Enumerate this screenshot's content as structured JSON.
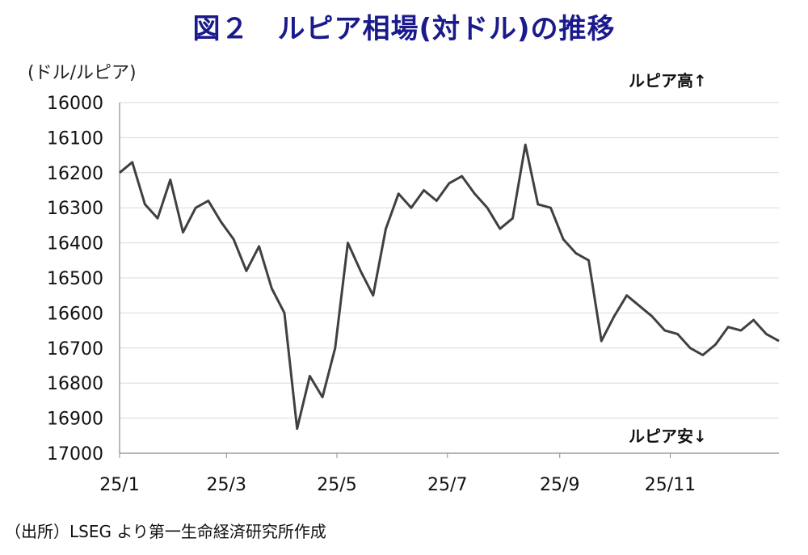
{
  "title": "図２　ルピア相場(対ドル)の推移",
  "unit_label": "(ドル/ルピア)",
  "annotations": {
    "rupiah_strong": "ルピア高↑",
    "rupiah_weak": "ルピア安↓"
  },
  "source": "（出所）LSEG より第一生命経済研究所作成",
  "colors": {
    "title": "#1a1a8c",
    "line": "#404040",
    "grid": "#d9d9d9",
    "axis": "#8c8c8c"
  },
  "chart_data": {
    "type": "line",
    "title": "図２　ルピア相場(対ドル)の推移",
    "ylabel": "(ドル/ルピア)",
    "y_inverted": true,
    "ylim": [
      16000,
      17000
    ],
    "yticks": [
      16000,
      16100,
      16200,
      16300,
      16400,
      16500,
      16600,
      16700,
      16800,
      16900,
      17000
    ],
    "ytick_labels": [
      "16000",
      "16100",
      "16200",
      "16300",
      "16400",
      "16500",
      "16600",
      "16700",
      "16800",
      "16900",
      "17000"
    ],
    "xtick_labels": [
      "25/1",
      "25/3",
      "25/5",
      "25/7",
      "25/9",
      "25/11"
    ],
    "grid": true,
    "series": [
      {
        "x": [
          "2025-01-01",
          "2025-01-08",
          "2025-01-15",
          "2025-01-22",
          "2025-01-29",
          "2025-02-05",
          "2025-02-12",
          "2025-02-19",
          "2025-02-26",
          "2025-03-05",
          "2025-03-12",
          "2025-03-19",
          "2025-03-26",
          "2025-04-02",
          "2025-04-09",
          "2025-04-16",
          "2025-04-23",
          "2025-04-30",
          "2025-05-07",
          "2025-05-14",
          "2025-05-21",
          "2025-05-28",
          "2025-06-04",
          "2025-06-11",
          "2025-06-18",
          "2025-06-25",
          "2025-07-02",
          "2025-07-09",
          "2025-07-16",
          "2025-07-23",
          "2025-07-30",
          "2025-08-06",
          "2025-08-13",
          "2025-08-20",
          "2025-08-27",
          "2025-09-03",
          "2025-09-10",
          "2025-09-17",
          "2025-09-24",
          "2025-10-01",
          "2025-10-08",
          "2025-10-15",
          "2025-10-22",
          "2025-10-29",
          "2025-11-05",
          "2025-11-12",
          "2025-11-19",
          "2025-11-26",
          "2025-12-03",
          "2025-12-10",
          "2025-12-17",
          "2025-12-24",
          "2025-12-31"
        ],
        "values": [
          16200,
          16170,
          16290,
          16330,
          16220,
          16370,
          16300,
          16280,
          16340,
          16390,
          16480,
          16410,
          16530,
          16600,
          16930,
          16780,
          16840,
          16700,
          16400,
          16480,
          16550,
          16360,
          16260,
          16300,
          16250,
          16280,
          16230,
          16210,
          16260,
          16300,
          16360,
          16330,
          16120,
          16290,
          16300,
          16390,
          16430,
          16450,
          16680,
          16610,
          16550,
          16580,
          16610,
          16650,
          16660,
          16700,
          16720,
          16690,
          16640,
          16650,
          16620,
          16660,
          16680
        ]
      }
    ]
  }
}
